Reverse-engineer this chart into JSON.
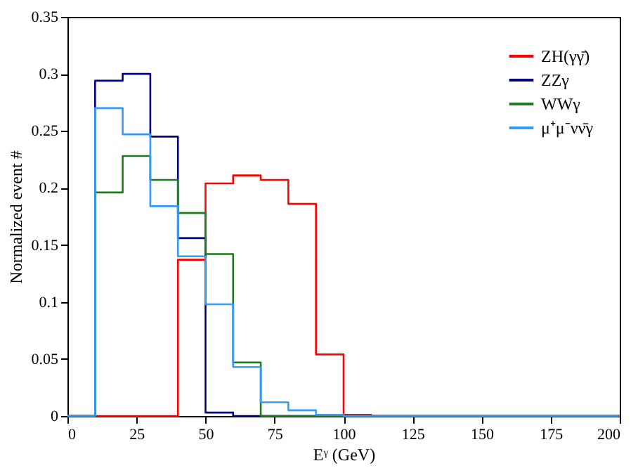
{
  "chart_data": {
    "type": "histogram",
    "xlabel": "Eᵞ (GeV)",
    "ylabel": "Normalized  event  #",
    "bins": [
      0,
      10,
      20,
      30,
      40,
      50,
      60,
      70,
      80,
      90,
      100,
      110,
      120,
      130,
      140,
      150,
      160,
      170,
      180,
      190,
      200
    ],
    "series": [
      {
        "name": "ZH(γγ̄)",
        "color": "#ff0000",
        "values": [
          0,
          0,
          0,
          0,
          0.137,
          0.204,
          0.211,
          0.207,
          0.186,
          0.054,
          0.001,
          0,
          0,
          0,
          0,
          0,
          0,
          0,
          0,
          0
        ]
      },
      {
        "name": "ZZγ",
        "color": "#00007f",
        "values": [
          0,
          0.294,
          0.3,
          0.245,
          0.156,
          0.003,
          0,
          0,
          0,
          0,
          0,
          0,
          0,
          0,
          0,
          0,
          0,
          0,
          0,
          0
        ]
      },
      {
        "name": "WWγ",
        "color": "#1e7a1e",
        "values": [
          0,
          0.196,
          0.228,
          0.207,
          0.178,
          0.142,
          0.047,
          0,
          0,
          0,
          0,
          0,
          0,
          0,
          0,
          0,
          0,
          0,
          0,
          0
        ]
      },
      {
        "name": "μ⁺μ⁻νν̄γ",
        "color": "#3399ff",
        "values": [
          0,
          0.27,
          0.247,
          0.184,
          0.14,
          0.098,
          0.043,
          0.012,
          0.005,
          0.001,
          0,
          0,
          0,
          0,
          0,
          0,
          0,
          0,
          0,
          0
        ]
      }
    ],
    "xlim": [
      0,
      200
    ],
    "xticks": [
      0,
      25,
      50,
      75,
      100,
      125,
      150,
      175,
      200
    ],
    "ylim": [
      0,
      0.35
    ],
    "yticks": [
      0,
      0.05,
      0.1,
      0.15,
      0.2,
      0.25,
      0.3,
      0.35
    ],
    "grid": false,
    "legend": "top right"
  }
}
